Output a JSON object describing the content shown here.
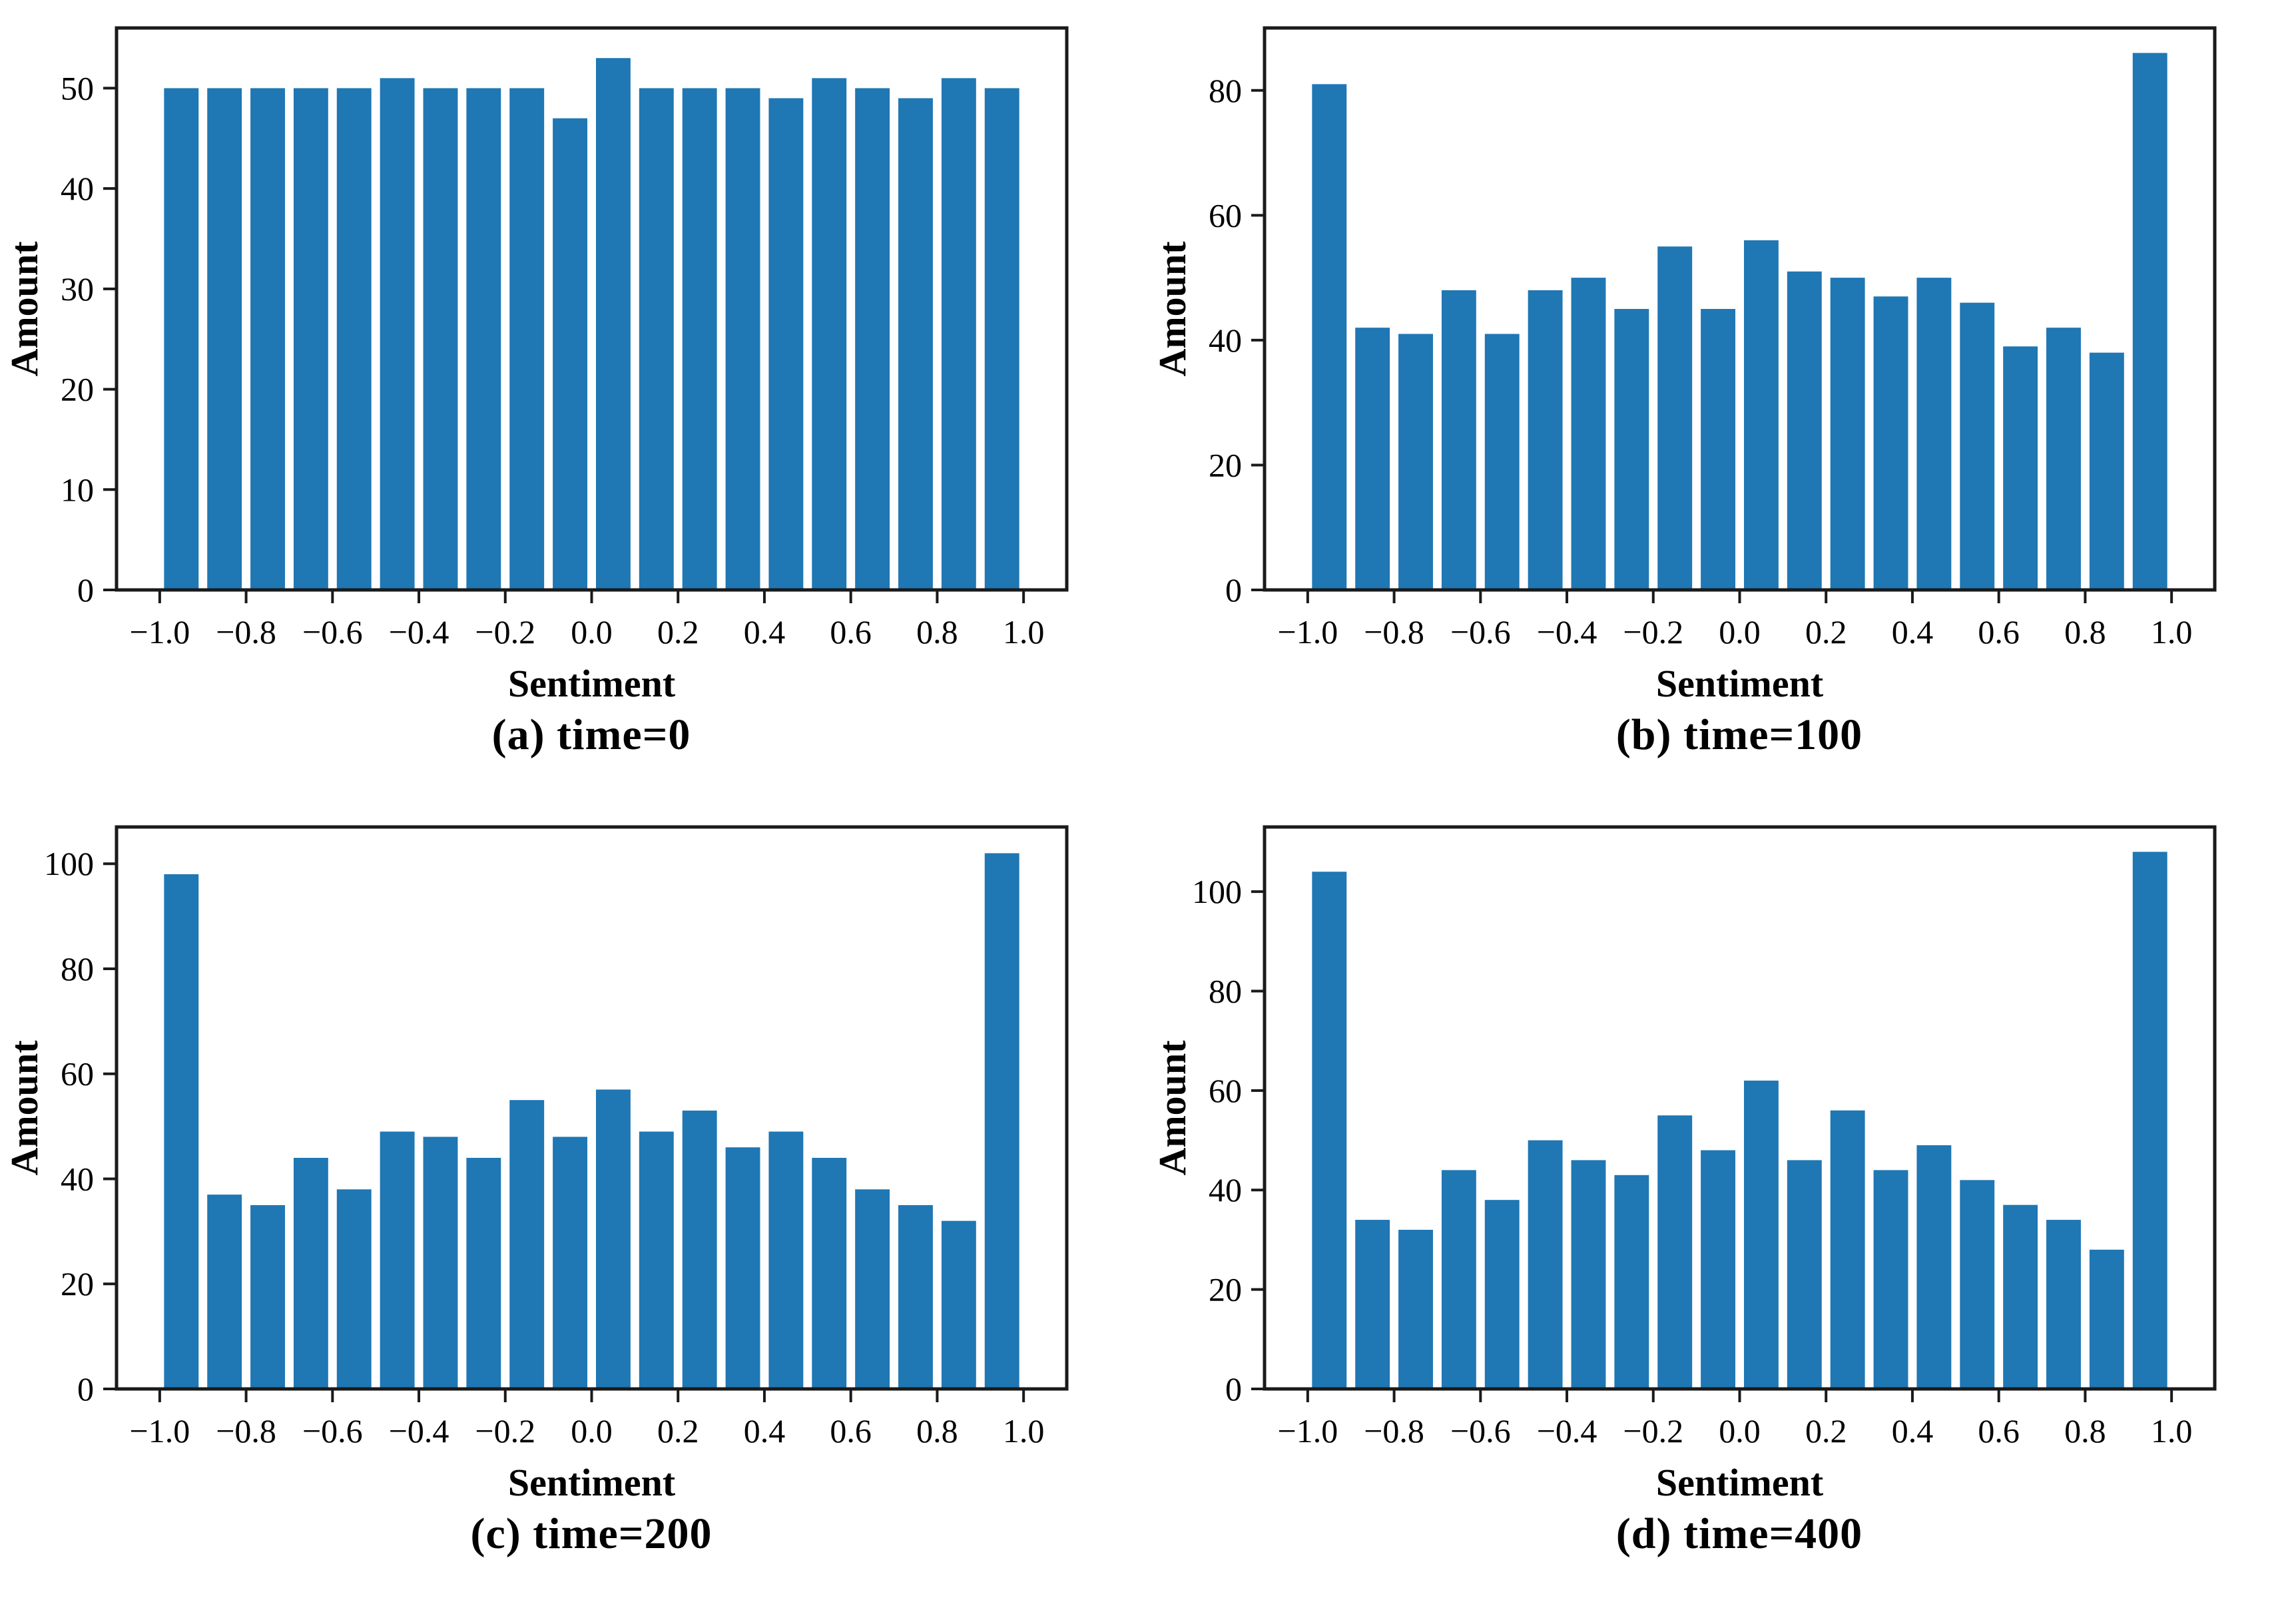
{
  "figure": {
    "background": "#ffffff"
  },
  "colors": {
    "bar": "#1f77b4",
    "axis": "#1a1a1a",
    "text": "#000000"
  },
  "chart_data": [
    {
      "type": "bar",
      "caption": "(a) time=0",
      "xlabel": "Sentiment",
      "ylabel": "Amount",
      "xlim": [
        -1.1,
        1.1
      ],
      "ylim": [
        0,
        56
      ],
      "bin_width": 0.1,
      "bar_rel_width": 0.8,
      "x": [
        -0.95,
        -0.85,
        -0.75,
        -0.65,
        -0.55,
        -0.45,
        -0.35,
        -0.25,
        -0.15,
        -0.05,
        0.05,
        0.15,
        0.25,
        0.35,
        0.45,
        0.55,
        0.65,
        0.75,
        0.85,
        0.95
      ],
      "values": [
        50,
        50,
        50,
        50,
        50,
        51,
        50,
        50,
        50,
        47,
        53,
        50,
        50,
        50,
        49,
        51,
        50,
        49,
        51,
        50
      ],
      "xticks": [
        -1.0,
        -0.8,
        -0.6,
        -0.4,
        -0.2,
        0.0,
        0.2,
        0.4,
        0.6,
        0.8,
        1.0
      ],
      "xtick_labels": [
        "−1.0",
        "−0.8",
        "−0.6",
        "−0.4",
        "−0.2",
        "0.0",
        "0.2",
        "0.4",
        "0.6",
        "0.8",
        "1.0"
      ],
      "yticks": [
        0,
        10,
        20,
        30,
        40,
        50
      ],
      "ytick_labels": [
        "0",
        "10",
        "20",
        "30",
        "40",
        "50"
      ],
      "grid": false,
      "legend": null
    },
    {
      "type": "bar",
      "caption": "(b) time=100",
      "xlabel": "Sentiment",
      "ylabel": "Amount",
      "xlim": [
        -1.1,
        1.1
      ],
      "ylim": [
        0,
        90
      ],
      "bin_width": 0.1,
      "bar_rel_width": 0.8,
      "x": [
        -0.95,
        -0.85,
        -0.75,
        -0.65,
        -0.55,
        -0.45,
        -0.35,
        -0.25,
        -0.15,
        -0.05,
        0.05,
        0.15,
        0.25,
        0.35,
        0.45,
        0.55,
        0.65,
        0.75,
        0.85,
        0.95
      ],
      "values": [
        81,
        42,
        41,
        48,
        41,
        48,
        50,
        45,
        55,
        45,
        56,
        51,
        50,
        47,
        50,
        46,
        39,
        42,
        38,
        86
      ],
      "xticks": [
        -1.0,
        -0.8,
        -0.6,
        -0.4,
        -0.2,
        0.0,
        0.2,
        0.4,
        0.6,
        0.8,
        1.0
      ],
      "xtick_labels": [
        "−1.0",
        "−0.8",
        "−0.6",
        "−0.4",
        "−0.2",
        "0.0",
        "0.2",
        "0.4",
        "0.6",
        "0.8",
        "1.0"
      ],
      "yticks": [
        0,
        20,
        40,
        60,
        80
      ],
      "ytick_labels": [
        "0",
        "20",
        "40",
        "60",
        "80"
      ],
      "grid": false,
      "legend": null
    },
    {
      "type": "bar",
      "caption": "(c) time=200",
      "xlabel": "Sentiment",
      "ylabel": "Amount",
      "xlim": [
        -1.1,
        1.1
      ],
      "ylim": [
        0,
        107
      ],
      "bin_width": 0.1,
      "bar_rel_width": 0.8,
      "x": [
        -0.95,
        -0.85,
        -0.75,
        -0.65,
        -0.55,
        -0.45,
        -0.35,
        -0.25,
        -0.15,
        -0.05,
        0.05,
        0.15,
        0.25,
        0.35,
        0.45,
        0.55,
        0.65,
        0.75,
        0.85,
        0.95
      ],
      "values": [
        98,
        37,
        35,
        44,
        38,
        49,
        48,
        44,
        55,
        48,
        57,
        49,
        53,
        46,
        49,
        44,
        38,
        35,
        32,
        102
      ],
      "xticks": [
        -1.0,
        -0.8,
        -0.6,
        -0.4,
        -0.2,
        0.0,
        0.2,
        0.4,
        0.6,
        0.8,
        1.0
      ],
      "xtick_labels": [
        "−1.0",
        "−0.8",
        "−0.6",
        "−0.4",
        "−0.2",
        "0.0",
        "0.2",
        "0.4",
        "0.6",
        "0.8",
        "1.0"
      ],
      "yticks": [
        0,
        20,
        40,
        60,
        80,
        100
      ],
      "ytick_labels": [
        "0",
        "20",
        "40",
        "60",
        "80",
        "100"
      ],
      "grid": false,
      "legend": null
    },
    {
      "type": "bar",
      "caption": "(d) time=400",
      "xlabel": "Sentiment",
      "ylabel": "Amount",
      "xlim": [
        -1.1,
        1.1
      ],
      "ylim": [
        0,
        113
      ],
      "bin_width": 0.1,
      "bar_rel_width": 0.8,
      "x": [
        -0.95,
        -0.85,
        -0.75,
        -0.65,
        -0.55,
        -0.45,
        -0.35,
        -0.25,
        -0.15,
        -0.05,
        0.05,
        0.15,
        0.25,
        0.35,
        0.45,
        0.55,
        0.65,
        0.75,
        0.85,
        0.95
      ],
      "values": [
        104,
        34,
        32,
        44,
        38,
        50,
        46,
        43,
        55,
        48,
        62,
        46,
        56,
        44,
        49,
        42,
        37,
        34,
        28,
        108
      ],
      "xticks": [
        -1.0,
        -0.8,
        -0.6,
        -0.4,
        -0.2,
        0.0,
        0.2,
        0.4,
        0.6,
        0.8,
        1.0
      ],
      "xtick_labels": [
        "−1.0",
        "−0.8",
        "−0.6",
        "−0.4",
        "−0.2",
        "0.0",
        "0.2",
        "0.4",
        "0.6",
        "0.8",
        "1.0"
      ],
      "yticks": [
        0,
        20,
        40,
        60,
        80,
        100
      ],
      "ytick_labels": [
        "0",
        "20",
        "40",
        "60",
        "80",
        "100"
      ],
      "grid": false,
      "legend": null
    }
  ]
}
